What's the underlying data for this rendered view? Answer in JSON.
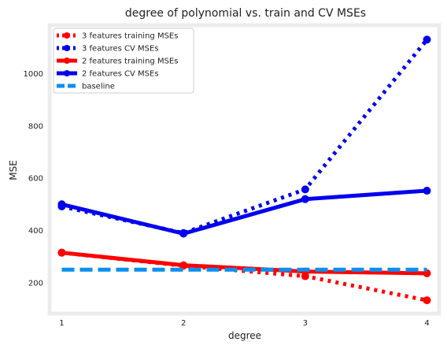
{
  "chart_data": {
    "type": "line",
    "title": "degree of polynomial vs. train and CV MSEs",
    "xlabel": "degree",
    "ylabel": "MSE",
    "x": [
      1,
      2,
      3,
      4
    ],
    "xticks": [
      "1",
      "2",
      "3",
      "4"
    ],
    "yticks": [
      "200",
      "400",
      "600",
      "800",
      "1000"
    ],
    "xlim": [
      0.9,
      4.1
    ],
    "ylim": [
      82,
      1185
    ],
    "grid": false,
    "legend_position": "top-left",
    "series": [
      {
        "name": "3 features training MSEs",
        "values": [
          315,
          265,
          225,
          133
        ],
        "color": "#ff0000",
        "linestyle": "dotted",
        "marker": "circle"
      },
      {
        "name": "3 features CV MSEs",
        "values": [
          492,
          390,
          557,
          1130
        ],
        "color": "#0000ee",
        "linestyle": "dotted",
        "marker": "circle"
      },
      {
        "name": "2 features training MSEs",
        "values": [
          315,
          267,
          243,
          236
        ],
        "color": "#ff0000",
        "linestyle": "solid",
        "marker": "circle"
      },
      {
        "name": "2 features CV MSEs",
        "values": [
          500,
          388,
          520,
          552
        ],
        "color": "#0000ee",
        "linestyle": "solid",
        "marker": "circle"
      },
      {
        "name": "baseline",
        "values": [
          250,
          250,
          250,
          250
        ],
        "color": "#0a8ff0",
        "linestyle": "dashed",
        "marker": "none"
      }
    ]
  }
}
